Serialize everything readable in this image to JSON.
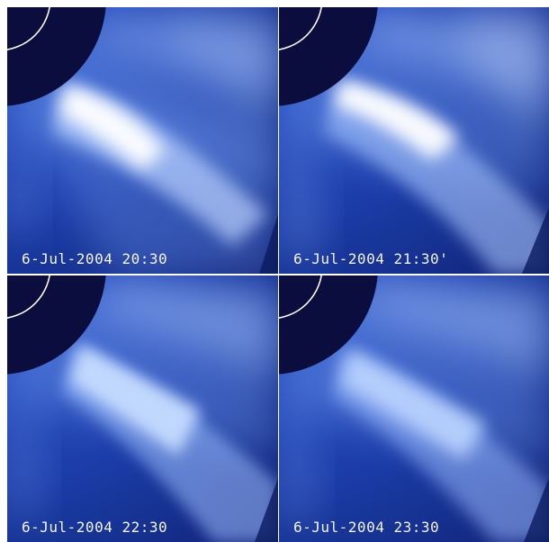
{
  "panels": [
    {
      "timestamp": "6-Jul-2004 20:30"
    },
    {
      "timestamp": "6-Jul-2004 21:30'"
    },
    {
      "timestamp": "6-Jul-2004 22:30"
    },
    {
      "timestamp": "6-Jul-2004 23:30"
    }
  ],
  "colors": {
    "background": "#122a83",
    "occulter": "#0a0d3e",
    "limb_circle": "#ffffff",
    "bright_core": "#ffffff",
    "glow": "#8fb4ff",
    "label_text": "#f2f4ff",
    "separator": "#ffffff"
  }
}
